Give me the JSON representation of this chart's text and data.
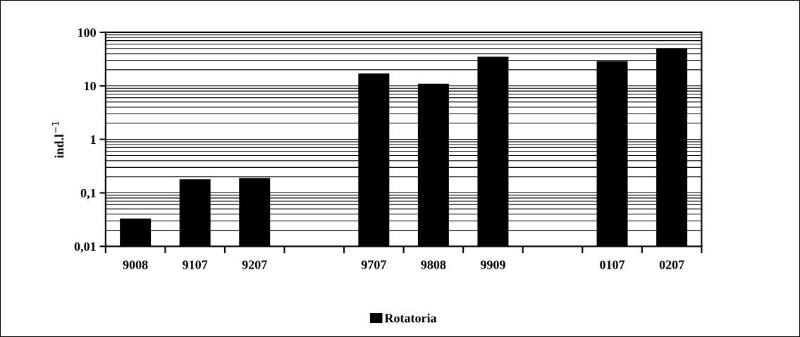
{
  "chart_data": {
    "type": "bar",
    "ylabel": "ind.l$^{−1}$",
    "categories": [
      "9008",
      "9107",
      "9207",
      null,
      "9707",
      "9808",
      "9909",
      null,
      "0107",
      "0207"
    ],
    "series": [
      {
        "name": "Rotatoria",
        "color": "#000000",
        "values": [
          0.033,
          0.18,
          0.19,
          null,
          17,
          11,
          35,
          null,
          29,
          50
        ]
      }
    ],
    "log": "y",
    "ylim": [
      0.01,
      100
    ],
    "yticks": [
      {
        "value": 0.01,
        "label": "0,01"
      },
      {
        "value": 0.1,
        "label": "0,1"
      },
      1,
      10,
      100
    ],
    "grid": "y",
    "legend": "bottom"
  }
}
